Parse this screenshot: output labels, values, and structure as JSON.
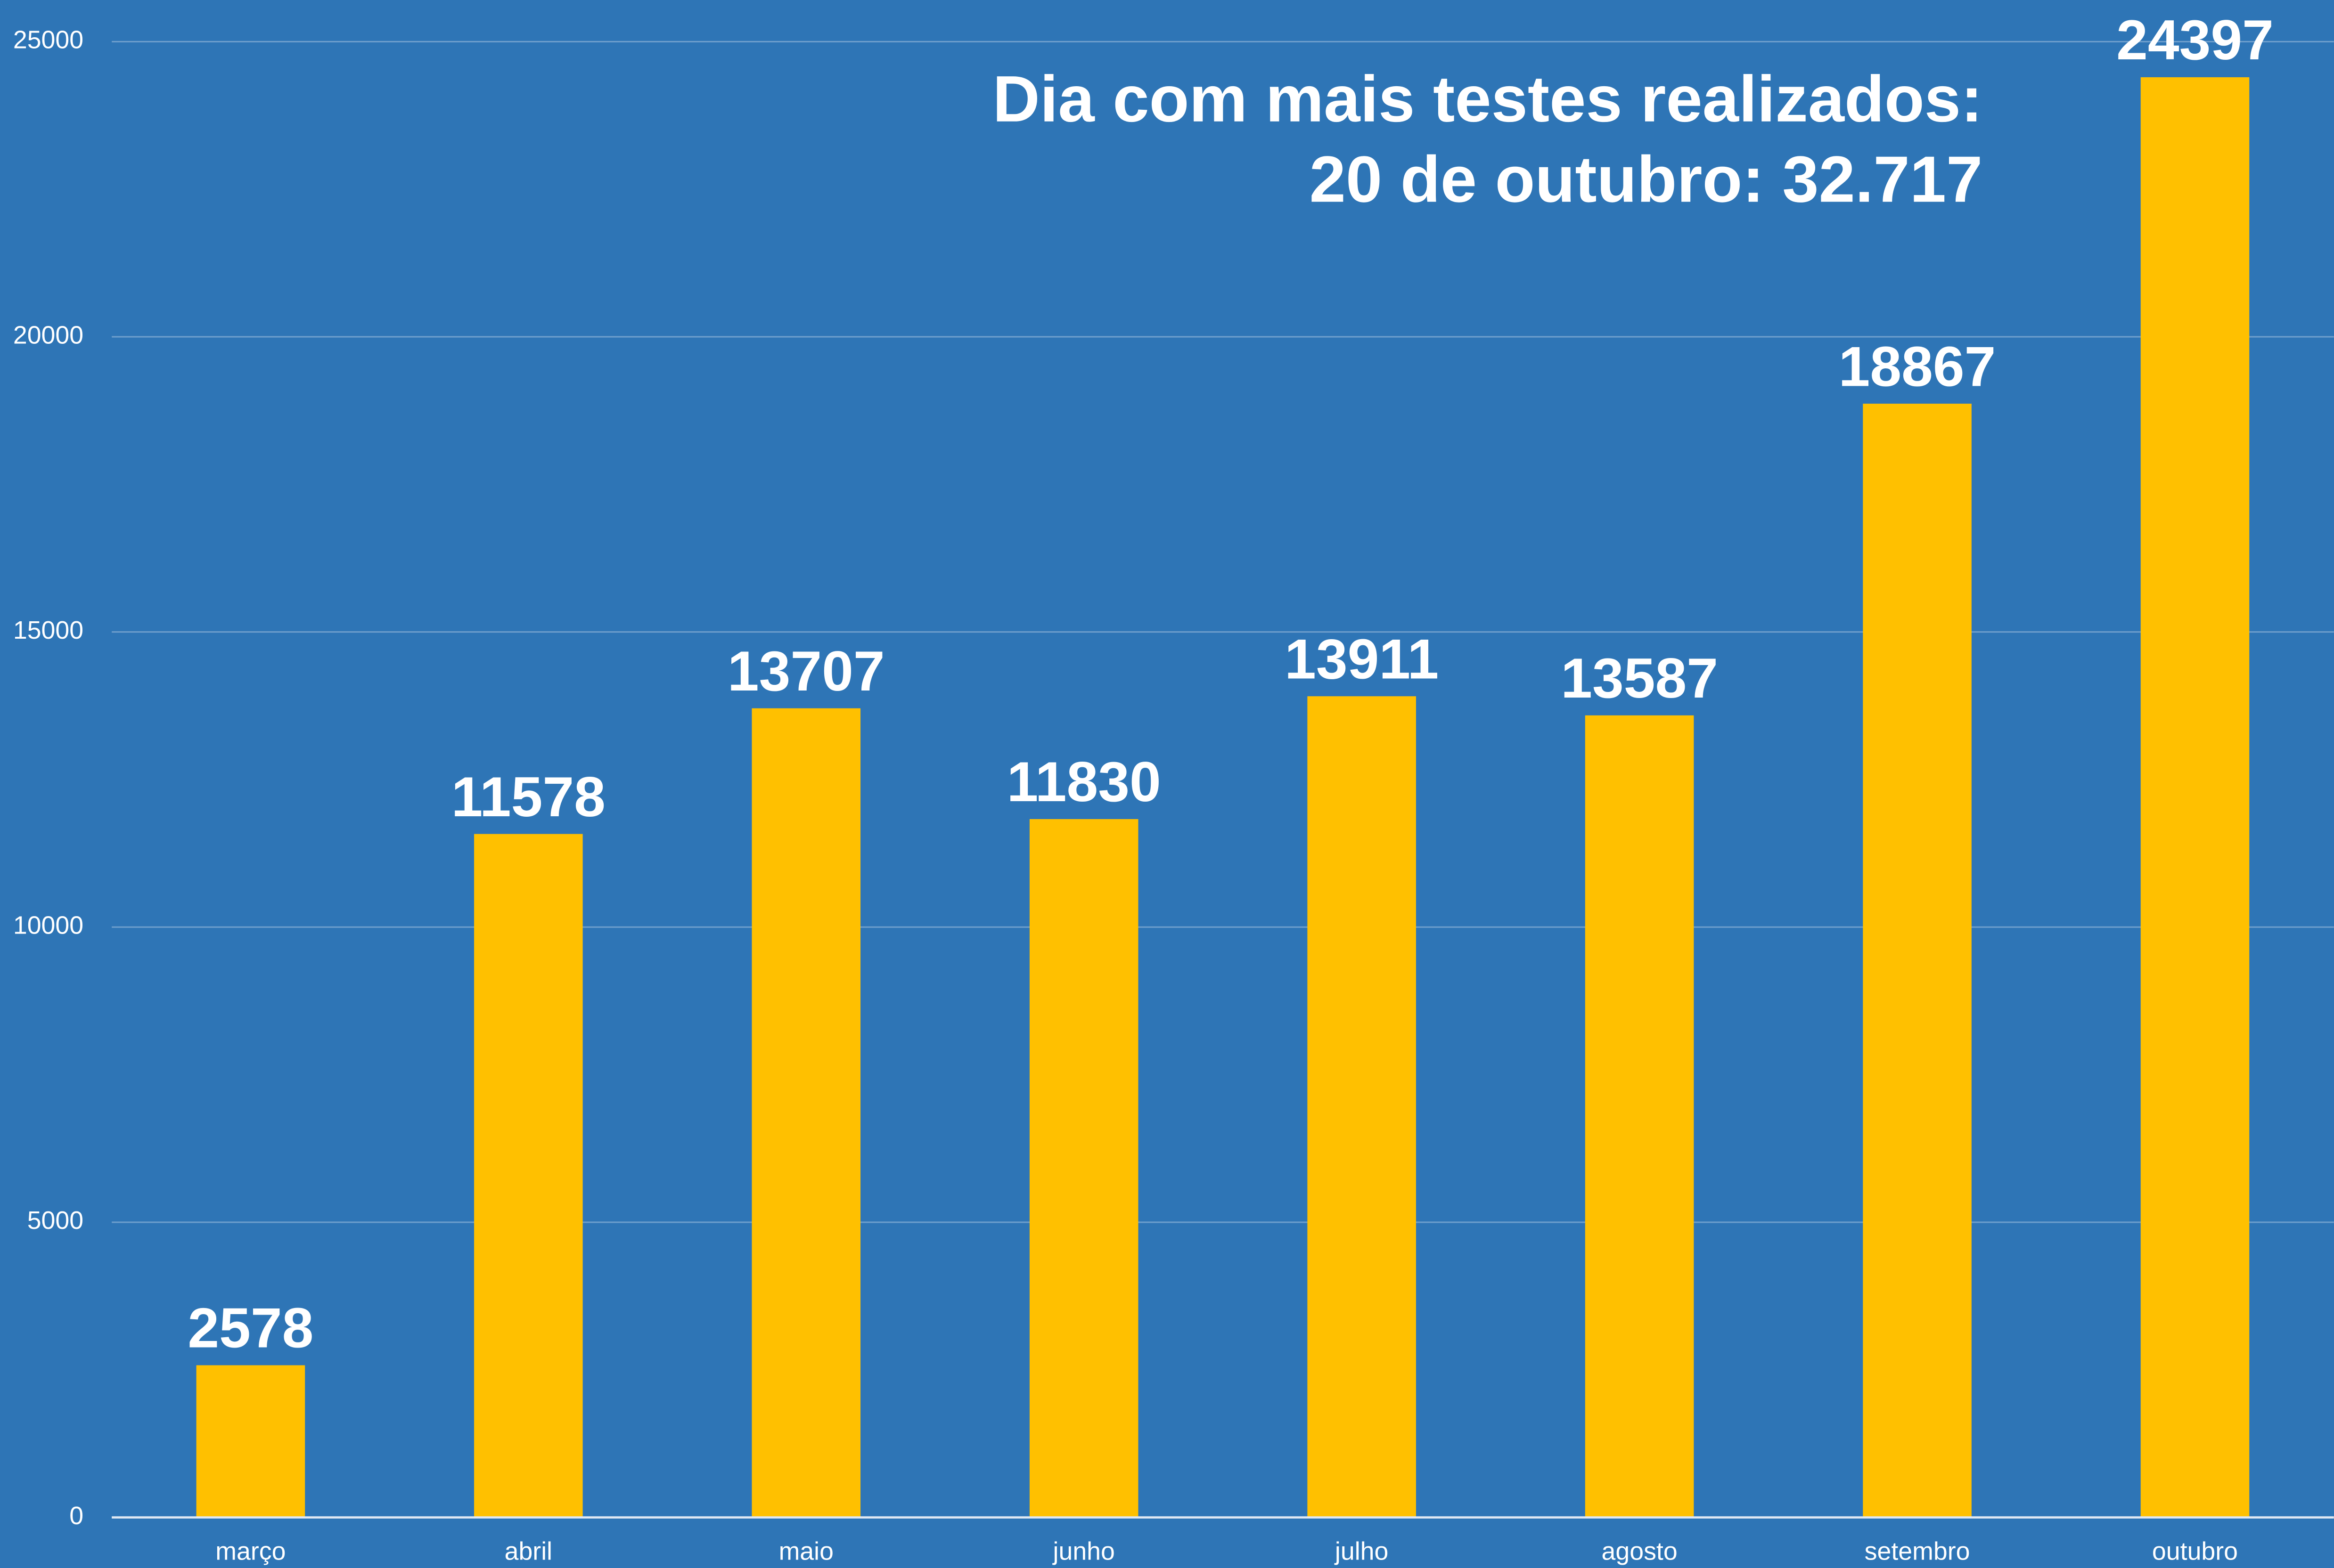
{
  "chart_data": {
    "type": "bar",
    "annotation": [
      "Dia com mais testes realizados:",
      "20 de outubro: 32.717"
    ],
    "categories": [
      "março",
      "abril",
      "maio",
      "junho",
      "julho",
      "agosto",
      "setembro",
      "outubro"
    ],
    "values": [
      2578,
      11578,
      13707,
      11830,
      13911,
      13587,
      18867,
      24397
    ],
    "color": "#ffc000",
    "background": "#2e75b6",
    "ylim": [
      0,
      25000
    ],
    "yticks": [
      0,
      5000,
      10000,
      15000,
      20000,
      25000
    ],
    "grid": true
  }
}
